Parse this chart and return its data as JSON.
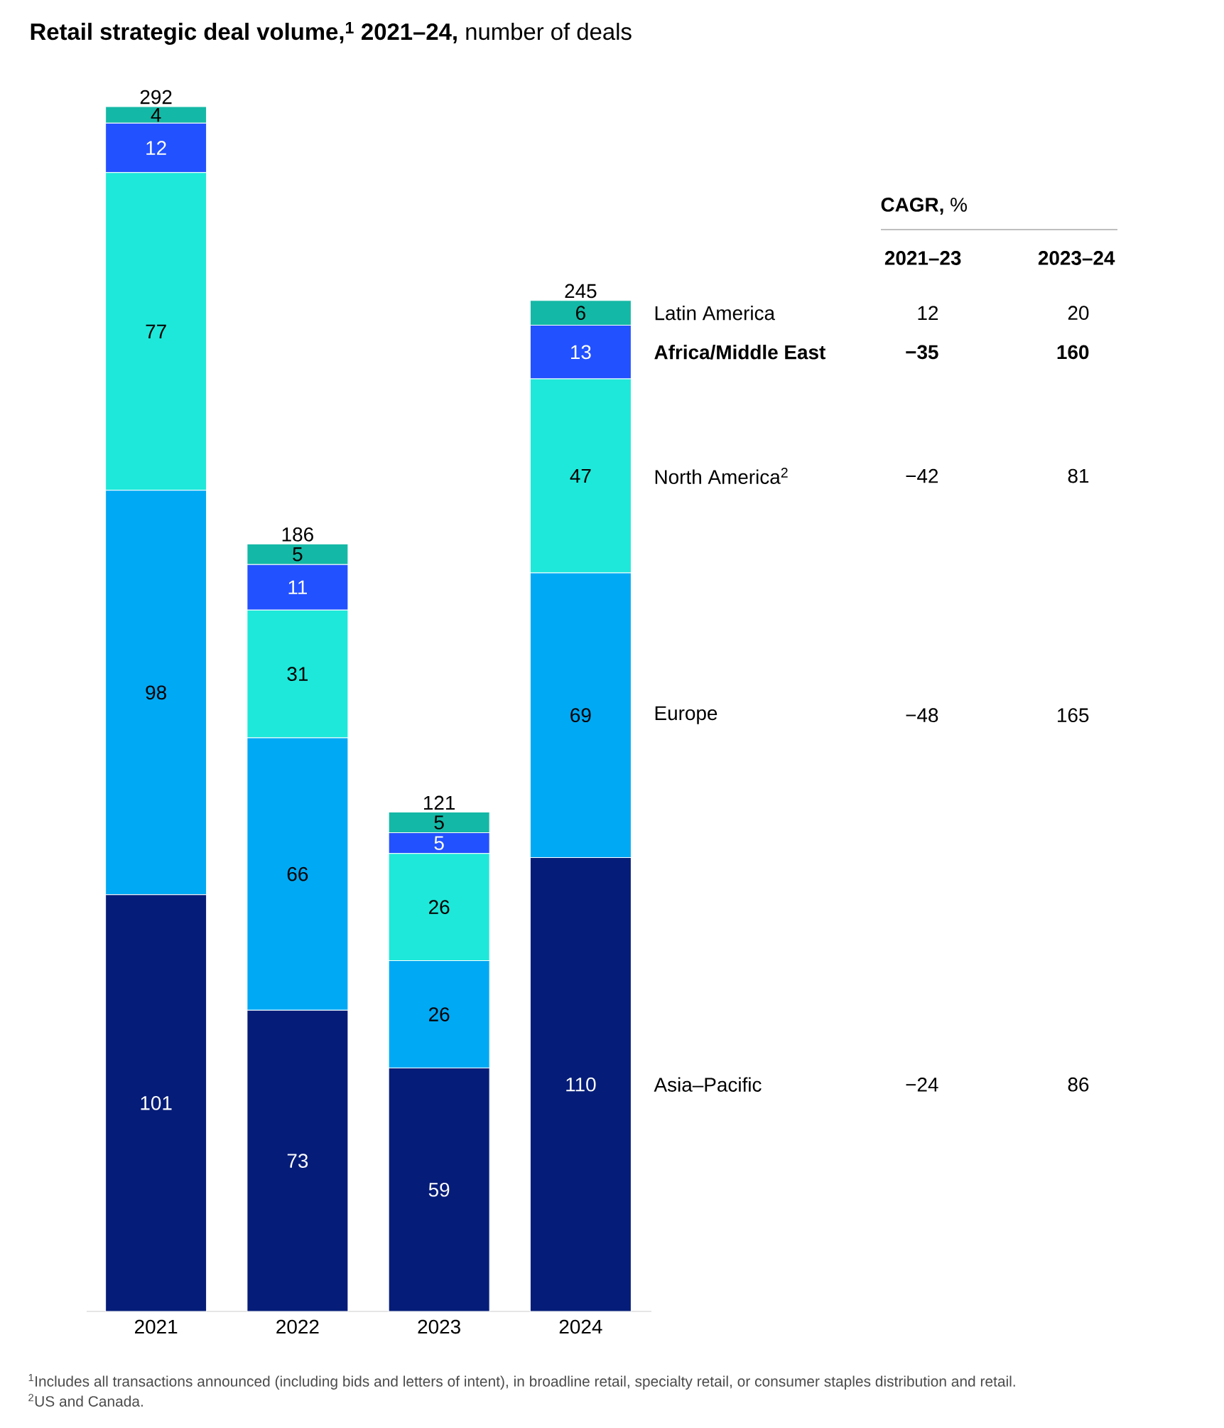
{
  "chart_data": {
    "type": "bar",
    "stacked": true,
    "data_labels": true,
    "title": "**Retail strategic deal volume,$^{1}$ 2021–24,** number of deals",
    "categories": [
      "2021",
      "2022",
      "2023",
      "2024"
    ],
    "series": [
      {
        "name": "Asia–Pacific",
        "color": "#051c78",
        "values": [
          101,
          73,
          59,
          110
        ]
      },
      {
        "name": "Europe",
        "color": "#00a9f4",
        "values": [
          98,
          66,
          26,
          69
        ]
      },
      {
        "name": "North America$^{2}$",
        "color": "#1ee8d9",
        "values": [
          77,
          31,
          26,
          47
        ]
      },
      {
        "name": "**Africa/Middle East**",
        "color": "#2251ff",
        "values": [
          12,
          11,
          5,
          13
        ]
      },
      {
        "name": "Latin America",
        "color": "#14b8a6",
        "values": [
          4,
          5,
          5,
          6
        ]
      }
    ],
    "totals": [
      "292",
      "186",
      "121",
      "245"
    ],
    "annotations": [
      "**CAGR,** %",
      "**2021–23**",
      "**2023–24**",
      "−24",
      "86",
      "−48",
      "165",
      "−42",
      "81",
      "**−35**",
      "**160**",
      "12",
      "20",
      "$^{1}$Includes all transactions announced (including bids and letters of intent), in broadline retail, specialty retail, or consumer staples distribution and retail.",
      "$^{2}$US and Canada."
    ]
  }
}
